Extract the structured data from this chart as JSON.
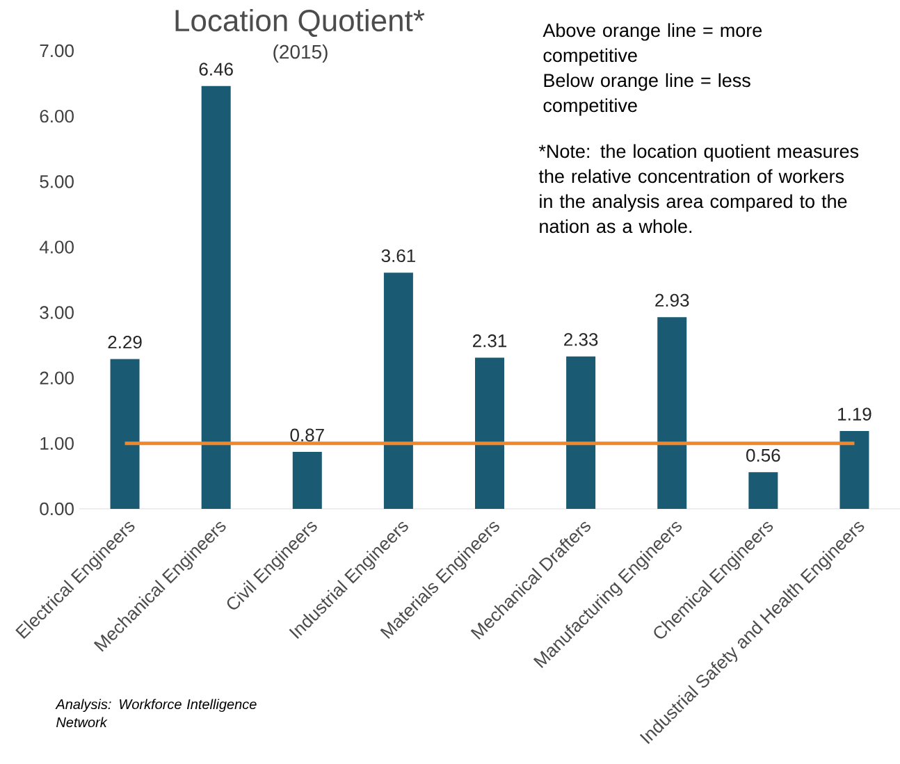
{
  "chart_data": {
    "type": "bar",
    "title": "Location Quotient*",
    "subtitle": "(2015)",
    "categories": [
      "Electrical Engineers",
      "Mechanical Engineers",
      "Civil Engineers",
      "Industrial Engineers",
      "Materials Engineers",
      "Mechanical Drafters",
      "Manufacturing Engineers",
      "Chemical Engineers",
      "Industrial Safety and Health Engineers"
    ],
    "values": [
      2.29,
      6.46,
      0.87,
      3.61,
      2.31,
      2.33,
      2.93,
      0.56,
      1.19
    ],
    "color": "#1b5a73",
    "ylim": [
      0,
      7
    ],
    "yticks": [
      {
        "value": 0,
        "label": "0.00"
      },
      {
        "value": 1,
        "label": "1.00"
      },
      {
        "value": 2,
        "label": "2.00"
      },
      {
        "value": 3,
        "label": "3.00"
      },
      {
        "value": 4,
        "label": "4.00"
      },
      {
        "value": 5,
        "label": "5.00"
      },
      {
        "value": 6,
        "label": "6.00"
      },
      {
        "value": 7,
        "label": "7.00"
      }
    ],
    "data_labels": true,
    "grid": false,
    "ref_lines": [
      {
        "axis": "y",
        "value": 1,
        "color": "#f0882b"
      }
    ],
    "annotations": [
      "Above orange line = more competitive",
      "Below orange line = less competitive",
      "*Note: the location quotient measures the relative concentration of workers in the analysis area compared to the nation as a whole.",
      "Analysis: Workforce Intelligence Network"
    ]
  }
}
